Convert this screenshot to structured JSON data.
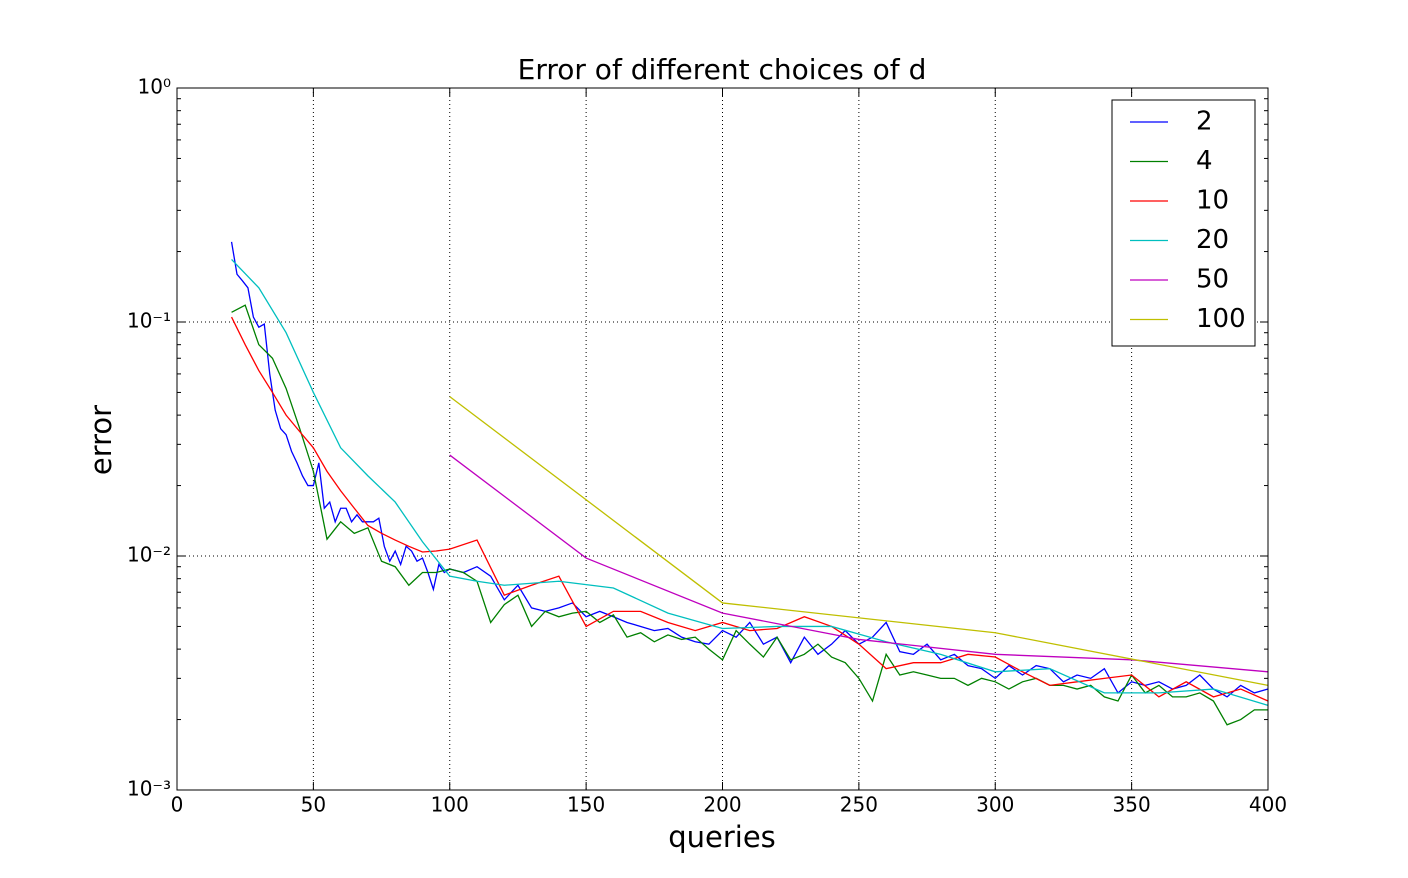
{
  "chart_data": {
    "type": "line",
    "title": "Error of different choices of d",
    "xlabel": "queries",
    "ylabel": "error",
    "xlim": [
      0,
      400
    ],
    "xticks": [
      0,
      50,
      100,
      150,
      200,
      250,
      300,
      350,
      400
    ],
    "ylim": [
      0.001,
      1
    ],
    "yscale": "log",
    "yticks": [
      {
        "value": 0.001,
        "label": "10⁻³"
      },
      {
        "value": 0.01,
        "label": "10⁻²"
      },
      {
        "value": 0.1,
        "label": "10⁻¹"
      },
      {
        "value": 1,
        "label": "10⁰"
      }
    ],
    "grid": true,
    "legend": "upper right",
    "series": [
      {
        "name": "2",
        "color": "#0000ff",
        "x": [
          20,
          22,
          24,
          26,
          28,
          30,
          32,
          34,
          36,
          38,
          40,
          42,
          44,
          46,
          48,
          50,
          52,
          54,
          56,
          58,
          60,
          62,
          64,
          66,
          68,
          70,
          72,
          74,
          76,
          78,
          80,
          82,
          84,
          86,
          88,
          90,
          92,
          94,
          96,
          98,
          100,
          105,
          110,
          115,
          120,
          125,
          130,
          135,
          140,
          145,
          150,
          155,
          160,
          165,
          170,
          175,
          180,
          185,
          190,
          195,
          200,
          205,
          210,
          215,
          220,
          225,
          230,
          235,
          240,
          245,
          250,
          255,
          260,
          265,
          270,
          275,
          280,
          285,
          290,
          295,
          300,
          305,
          310,
          315,
          320,
          325,
          330,
          335,
          340,
          345,
          350,
          355,
          360,
          365,
          370,
          375,
          380,
          385,
          390,
          395,
          400
        ],
        "values": [
          0.22,
          0.16,
          0.15,
          0.14,
          0.105,
          0.095,
          0.098,
          0.06,
          0.042,
          0.035,
          0.033,
          0.028,
          0.025,
          0.022,
          0.02,
          0.02,
          0.025,
          0.016,
          0.017,
          0.014,
          0.016,
          0.016,
          0.014,
          0.015,
          0.014,
          0.014,
          0.014,
          0.0145,
          0.011,
          0.0095,
          0.0105,
          0.0092,
          0.011,
          0.0105,
          0.0095,
          0.0098,
          0.0085,
          0.0072,
          0.0092,
          0.0085,
          0.0088,
          0.0085,
          0.009,
          0.0082,
          0.0065,
          0.0075,
          0.006,
          0.0058,
          0.006,
          0.0063,
          0.0055,
          0.0058,
          0.0055,
          0.0052,
          0.005,
          0.0048,
          0.0049,
          0.0045,
          0.0043,
          0.0042,
          0.0048,
          0.0045,
          0.0052,
          0.0042,
          0.0045,
          0.0035,
          0.0045,
          0.0038,
          0.0042,
          0.0048,
          0.0042,
          0.0045,
          0.0052,
          0.0039,
          0.0038,
          0.0042,
          0.0036,
          0.0038,
          0.0034,
          0.0033,
          0.003,
          0.0034,
          0.0031,
          0.0034,
          0.0033,
          0.0029,
          0.0031,
          0.003,
          0.0033,
          0.0026,
          0.0029,
          0.0028,
          0.0029,
          0.0027,
          0.0028,
          0.0031,
          0.0027,
          0.0025,
          0.0028,
          0.0026,
          0.0027
        ]
      },
      {
        "name": "4",
        "color": "#008000",
        "x": [
          20,
          25,
          30,
          35,
          40,
          45,
          50,
          55,
          60,
          65,
          70,
          75,
          80,
          85,
          90,
          95,
          100,
          105,
          110,
          115,
          120,
          125,
          130,
          135,
          140,
          145,
          150,
          155,
          160,
          165,
          170,
          175,
          180,
          185,
          190,
          195,
          200,
          205,
          210,
          215,
          220,
          225,
          230,
          235,
          240,
          245,
          250,
          255,
          260,
          265,
          270,
          275,
          280,
          285,
          290,
          295,
          300,
          305,
          310,
          315,
          320,
          325,
          330,
          335,
          340,
          345,
          350,
          355,
          360,
          365,
          370,
          375,
          380,
          385,
          390,
          395,
          400
        ],
        "values": [
          0.11,
          0.118,
          0.08,
          0.07,
          0.052,
          0.035,
          0.023,
          0.0118,
          0.014,
          0.0125,
          0.0132,
          0.0095,
          0.009,
          0.0075,
          0.0085,
          0.0085,
          0.0088,
          0.0085,
          0.0078,
          0.0052,
          0.0062,
          0.0068,
          0.005,
          0.0058,
          0.0055,
          0.0057,
          0.0058,
          0.0052,
          0.0056,
          0.0045,
          0.0047,
          0.0043,
          0.0046,
          0.0044,
          0.0045,
          0.004,
          0.0036,
          0.0048,
          0.0042,
          0.0037,
          0.0045,
          0.0036,
          0.0038,
          0.0042,
          0.0037,
          0.0035,
          0.003,
          0.0024,
          0.0038,
          0.0031,
          0.0032,
          0.0031,
          0.003,
          0.003,
          0.0028,
          0.003,
          0.0029,
          0.0027,
          0.0029,
          0.003,
          0.0028,
          0.0028,
          0.0027,
          0.0028,
          0.0025,
          0.0024,
          0.0031,
          0.0026,
          0.0028,
          0.0025,
          0.0025,
          0.0026,
          0.0024,
          0.0019,
          0.002,
          0.0022,
          0.0022
        ]
      },
      {
        "name": "10",
        "color": "#ff0000",
        "x": [
          20,
          25,
          30,
          35,
          40,
          45,
          50,
          55,
          60,
          65,
          70,
          75,
          80,
          85,
          90,
          95,
          100,
          110,
          120,
          130,
          140,
          150,
          160,
          170,
          180,
          190,
          200,
          210,
          220,
          230,
          240,
          250,
          260,
          270,
          280,
          290,
          300,
          310,
          320,
          330,
          340,
          350,
          360,
          370,
          380,
          390,
          400
        ],
        "values": [
          0.105,
          0.08,
          0.062,
          0.05,
          0.04,
          0.034,
          0.029,
          0.023,
          0.019,
          0.016,
          0.0135,
          0.0125,
          0.0117,
          0.011,
          0.0104,
          0.0105,
          0.0107,
          0.0117,
          0.0068,
          0.0075,
          0.0082,
          0.005,
          0.0058,
          0.0058,
          0.0052,
          0.0048,
          0.0052,
          0.0048,
          0.0049,
          0.0055,
          0.005,
          0.0042,
          0.0033,
          0.0035,
          0.0035,
          0.0038,
          0.0037,
          0.0032,
          0.0028,
          0.0029,
          0.003,
          0.0031,
          0.0025,
          0.0029,
          0.0025,
          0.0027,
          0.0024
        ]
      },
      {
        "name": "20",
        "color": "#00bfbf",
        "x": [
          20,
          30,
          40,
          50,
          60,
          70,
          80,
          90,
          100,
          110,
          120,
          140,
          160,
          180,
          200,
          220,
          240,
          260,
          280,
          300,
          320,
          340,
          360,
          380,
          400
        ],
        "values": [
          0.185,
          0.14,
          0.09,
          0.05,
          0.029,
          0.022,
          0.017,
          0.0115,
          0.0082,
          0.0078,
          0.0075,
          0.0078,
          0.0073,
          0.0057,
          0.0049,
          0.005,
          0.005,
          0.0043,
          0.0038,
          0.0032,
          0.0033,
          0.0026,
          0.0026,
          0.0027,
          0.0023
        ]
      },
      {
        "name": "50",
        "color": "#bf00bf",
        "x": [
          100,
          150,
          200,
          250,
          300,
          350,
          400
        ],
        "values": [
          0.027,
          0.0098,
          0.0057,
          0.0044,
          0.0038,
          0.0036,
          0.0032
        ]
      },
      {
        "name": "100",
        "color": "#bfbf00",
        "x": [
          100,
          200,
          300,
          400
        ],
        "values": [
          0.048,
          0.0063,
          0.0047,
          0.0028
        ]
      }
    ]
  }
}
